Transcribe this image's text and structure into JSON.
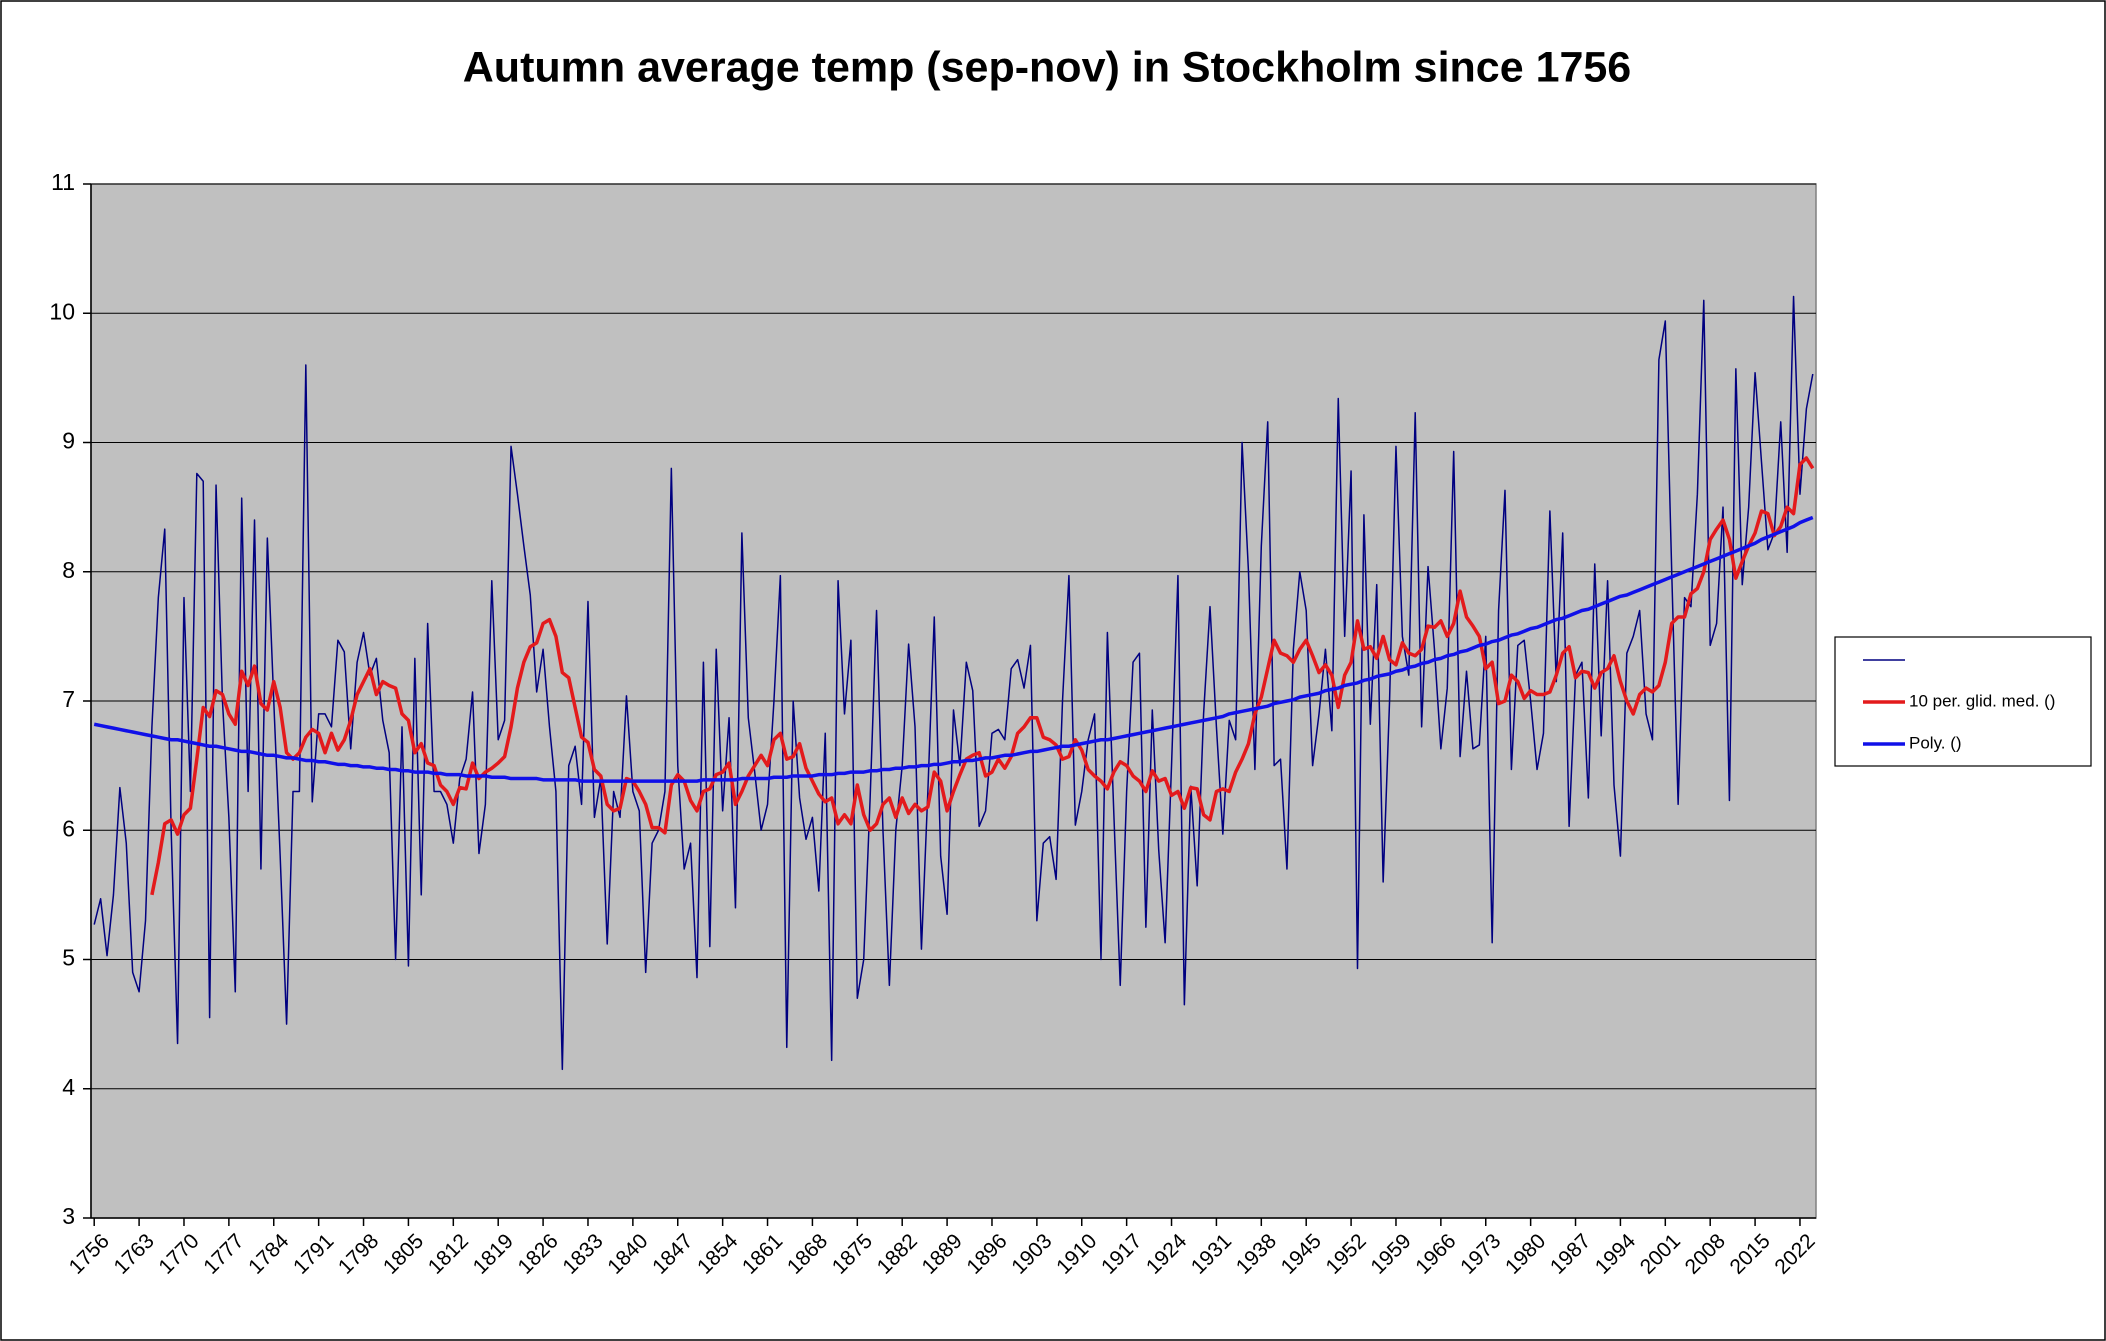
{
  "chart_data": {
    "type": "line",
    "title": "Autumn average temp (sep-nov) in Stockholm since 1756",
    "x": [
      1756,
      1757,
      1758,
      1759,
      1760,
      1761,
      1762,
      1763,
      1764,
      1765,
      1766,
      1767,
      1768,
      1769,
      1770,
      1771,
      1772,
      1773,
      1774,
      1775,
      1776,
      1777,
      1778,
      1779,
      1780,
      1781,
      1782,
      1783,
      1784,
      1785,
      1786,
      1787,
      1788,
      1789,
      1790,
      1791,
      1792,
      1793,
      1794,
      1795,
      1796,
      1797,
      1798,
      1799,
      1800,
      1801,
      1802,
      1803,
      1804,
      1805,
      1806,
      1807,
      1808,
      1809,
      1810,
      1811,
      1812,
      1813,
      1814,
      1815,
      1816,
      1817,
      1818,
      1819,
      1820,
      1821,
      1822,
      1823,
      1824,
      1825,
      1826,
      1827,
      1828,
      1829,
      1830,
      1831,
      1832,
      1833,
      1834,
      1835,
      1836,
      1837,
      1838,
      1839,
      1840,
      1841,
      1842,
      1843,
      1844,
      1845,
      1846,
      1847,
      1848,
      1849,
      1850,
      1851,
      1852,
      1853,
      1854,
      1855,
      1856,
      1857,
      1858,
      1859,
      1860,
      1861,
      1862,
      1863,
      1864,
      1865,
      1866,
      1867,
      1868,
      1869,
      1870,
      1871,
      1872,
      1873,
      1874,
      1875,
      1876,
      1877,
      1878,
      1879,
      1880,
      1881,
      1882,
      1883,
      1884,
      1885,
      1886,
      1887,
      1888,
      1889,
      1890,
      1891,
      1892,
      1893,
      1894,
      1895,
      1896,
      1897,
      1898,
      1899,
      1900,
      1901,
      1902,
      1903,
      1904,
      1905,
      1906,
      1907,
      1908,
      1909,
      1910,
      1911,
      1912,
      1913,
      1914,
      1915,
      1916,
      1917,
      1918,
      1919,
      1920,
      1921,
      1922,
      1923,
      1924,
      1925,
      1926,
      1927,
      1928,
      1929,
      1930,
      1931,
      1932,
      1933,
      1934,
      1935,
      1936,
      1937,
      1938,
      1939,
      1940,
      1941,
      1942,
      1943,
      1944,
      1945,
      1946,
      1947,
      1948,
      1949,
      1950,
      1951,
      1952,
      1953,
      1954,
      1955,
      1956,
      1957,
      1958,
      1959,
      1960,
      1961,
      1962,
      1963,
      1964,
      1965,
      1966,
      1967,
      1968,
      1969,
      1970,
      1971,
      1972,
      1973,
      1974,
      1975,
      1976,
      1977,
      1978,
      1979,
      1980,
      1981,
      1982,
      1983,
      1984,
      1985,
      1986,
      1987,
      1988,
      1989,
      1990,
      1991,
      1992,
      1993,
      1994,
      1995,
      1996,
      1997,
      1998,
      1999,
      2000,
      2001,
      2002,
      2003,
      2004,
      2005,
      2006,
      2007,
      2008,
      2009,
      2010,
      2011,
      2012,
      2013,
      2014,
      2015,
      2016,
      2017,
      2018,
      2019,
      2020,
      2021,
      2022,
      2023,
      2024
    ],
    "series": [
      {
        "color": "#000080",
        "width": 1.5,
        "values": [
          5.27,
          5.47,
          5.03,
          5.5,
          6.33,
          5.9,
          4.9,
          4.75,
          5.3,
          6.8,
          7.8,
          8.33,
          6.0,
          4.35,
          7.8,
          6.3,
          8.76,
          8.7,
          4.55,
          8.67,
          7.0,
          6.1,
          4.75,
          8.57,
          6.3,
          8.4,
          5.7,
          8.26,
          7.0,
          5.8,
          4.5,
          6.3,
          6.3,
          9.6,
          6.22,
          6.9,
          6.9,
          6.8,
          7.47,
          7.38,
          6.63,
          7.3,
          7.53,
          7.2,
          7.33,
          6.85,
          6.6,
          5.0,
          6.8,
          4.95,
          7.33,
          5.5,
          7.6,
          6.3,
          6.3,
          6.2,
          5.9,
          6.4,
          6.55,
          7.07,
          5.82,
          6.2,
          7.93,
          6.7,
          6.85,
          8.97,
          8.6,
          8.2,
          7.82,
          7.07,
          7.4,
          6.8,
          6.3,
          4.15,
          6.5,
          6.65,
          6.2,
          7.77,
          6.1,
          6.4,
          5.12,
          6.3,
          6.1,
          7.04,
          6.3,
          6.15,
          4.9,
          5.9,
          6.0,
          6.3,
          8.8,
          6.5,
          5.7,
          5.9,
          4.86,
          7.3,
          5.1,
          7.4,
          6.15,
          6.87,
          5.4,
          8.3,
          6.87,
          6.45,
          6.0,
          6.2,
          7.0,
          7.97,
          4.32,
          7.0,
          6.25,
          5.93,
          6.1,
          5.53,
          6.75,
          4.22,
          7.93,
          6.9,
          7.47,
          4.7,
          5.0,
          6.25,
          7.7,
          6.0,
          4.8,
          6.0,
          6.5,
          7.44,
          6.8,
          5.08,
          6.3,
          7.65,
          5.8,
          5.35,
          6.93,
          6.5,
          7.3,
          7.08,
          6.03,
          6.15,
          6.75,
          6.78,
          6.7,
          7.25,
          7.32,
          7.1,
          7.43,
          5.3,
          5.9,
          5.95,
          5.62,
          7.0,
          7.97,
          6.04,
          6.3,
          6.7,
          6.9,
          5.0,
          7.53,
          6.13,
          4.8,
          6.3,
          7.3,
          7.37,
          5.25,
          6.93,
          5.85,
          5.13,
          6.5,
          7.97,
          4.65,
          6.34,
          5.57,
          6.9,
          7.73,
          6.8,
          5.97,
          6.85,
          6.7,
          9.0,
          8.0,
          6.47,
          8.2,
          9.16,
          6.5,
          6.55,
          5.7,
          7.4,
          8.0,
          7.7,
          6.5,
          6.9,
          7.4,
          6.77,
          9.34,
          7.5,
          8.78,
          4.93,
          8.44,
          6.82,
          7.9,
          5.6,
          7.0,
          8.97,
          7.5,
          7.2,
          9.23,
          6.8,
          8.04,
          7.4,
          6.63,
          7.1,
          8.93,
          6.57,
          7.23,
          6.63,
          6.66,
          7.5,
          5.13,
          7.7,
          8.63,
          6.47,
          7.43,
          7.47,
          7.0,
          6.47,
          6.75,
          8.47,
          7.15,
          8.3,
          6.03,
          7.2,
          7.3,
          6.25,
          8.06,
          6.73,
          7.93,
          6.35,
          5.8,
          7.37,
          7.5,
          7.7,
          6.9,
          6.7,
          9.64,
          9.94,
          8.0,
          6.2,
          7.8,
          7.73,
          8.6,
          10.1,
          7.43,
          7.6,
          8.5,
          6.23,
          9.57,
          7.9,
          8.5,
          9.54,
          8.85,
          8.17,
          8.3,
          9.16,
          8.15,
          10.13,
          8.6,
          9.26,
          9.53
        ]
      },
      {
        "name": "10 per. glid. med. ()",
        "color": "#e31a1c",
        "width": 3.5,
        "values": [
          null,
          null,
          null,
          null,
          null,
          null,
          null,
          null,
          null,
          5.5,
          5.75,
          6.05,
          6.08,
          5.97,
          6.12,
          6.17,
          6.55,
          6.95,
          6.88,
          7.08,
          7.05,
          6.9,
          6.82,
          7.23,
          7.12,
          7.27,
          6.98,
          6.93,
          7.15,
          6.95,
          6.6,
          6.55,
          6.6,
          6.72,
          6.78,
          6.75,
          6.6,
          6.75,
          6.62,
          6.7,
          6.85,
          7.05,
          7.15,
          7.25,
          7.05,
          7.15,
          7.12,
          7.1,
          6.9,
          6.85,
          6.6,
          6.67,
          6.52,
          6.5,
          6.35,
          6.3,
          6.2,
          6.33,
          6.32,
          6.52,
          6.4,
          6.45,
          6.48,
          6.52,
          6.57,
          6.8,
          7.1,
          7.3,
          7.42,
          7.45,
          7.6,
          7.63,
          7.5,
          7.22,
          7.18,
          6.95,
          6.72,
          6.68,
          6.47,
          6.42,
          6.2,
          6.15,
          6.17,
          6.4,
          6.38,
          6.3,
          6.2,
          6.02,
          6.02,
          5.98,
          6.35,
          6.43,
          6.38,
          6.23,
          6.15,
          6.3,
          6.32,
          6.43,
          6.45,
          6.52,
          6.2,
          6.3,
          6.42,
          6.5,
          6.58,
          6.5,
          6.7,
          6.75,
          6.55,
          6.57,
          6.67,
          6.48,
          6.38,
          6.28,
          6.22,
          6.25,
          6.05,
          6.12,
          6.05,
          6.35,
          6.12,
          6.0,
          6.05,
          6.2,
          6.25,
          6.1,
          6.25,
          6.13,
          6.2,
          6.15,
          6.18,
          6.45,
          6.38,
          6.15,
          6.3,
          6.43,
          6.55,
          6.58,
          6.6,
          6.42,
          6.45,
          6.55,
          6.48,
          6.57,
          6.75,
          6.8,
          6.87,
          6.87,
          6.72,
          6.7,
          6.66,
          6.55,
          6.57,
          6.7,
          6.62,
          6.47,
          6.42,
          6.38,
          6.32,
          6.45,
          6.53,
          6.5,
          6.42,
          6.38,
          6.3,
          6.46,
          6.38,
          6.4,
          6.27,
          6.3,
          6.17,
          6.33,
          6.32,
          6.12,
          6.08,
          6.3,
          6.32,
          6.3,
          6.45,
          6.55,
          6.67,
          6.9,
          7.03,
          7.25,
          7.47,
          7.37,
          7.35,
          7.3,
          7.4,
          7.47,
          7.35,
          7.22,
          7.28,
          7.2,
          6.95,
          7.2,
          7.3,
          7.62,
          7.4,
          7.42,
          7.33,
          7.5,
          7.32,
          7.28,
          7.45,
          7.37,
          7.35,
          7.4,
          7.58,
          7.57,
          7.62,
          7.5,
          7.6,
          7.85,
          7.65,
          7.58,
          7.5,
          7.25,
          7.3,
          6.98,
          7.0,
          7.2,
          7.15,
          7.02,
          7.08,
          7.05,
          7.05,
          7.07,
          7.2,
          7.37,
          7.42,
          7.18,
          7.23,
          7.22,
          7.1,
          7.22,
          7.25,
          7.35,
          7.15,
          7.0,
          6.9,
          7.05,
          7.1,
          7.07,
          7.12,
          7.3,
          7.6,
          7.65,
          7.65,
          7.83,
          7.87,
          8.0,
          8.25,
          8.33,
          8.4,
          8.25,
          7.95,
          8.08,
          8.2,
          8.3,
          8.47,
          8.45,
          8.28,
          8.35,
          8.5,
          8.45,
          8.83,
          8.88,
          8.8
        ]
      },
      {
        "name": "Poly. ()",
        "color": "#1010e8",
        "width": 3.5,
        "values": [
          6.82,
          6.81,
          6.8,
          6.79,
          6.78,
          6.77,
          6.76,
          6.75,
          6.74,
          6.73,
          6.72,
          6.71,
          6.7,
          6.7,
          6.69,
          6.68,
          6.67,
          6.66,
          6.65,
          6.65,
          6.64,
          6.63,
          6.62,
          6.61,
          6.61,
          6.6,
          6.59,
          6.58,
          6.58,
          6.57,
          6.56,
          6.56,
          6.55,
          6.54,
          6.54,
          6.53,
          6.53,
          6.52,
          6.51,
          6.51,
          6.5,
          6.5,
          6.49,
          6.49,
          6.48,
          6.48,
          6.47,
          6.47,
          6.46,
          6.46,
          6.45,
          6.45,
          6.45,
          6.44,
          6.44,
          6.43,
          6.43,
          6.43,
          6.42,
          6.42,
          6.42,
          6.42,
          6.41,
          6.41,
          6.41,
          6.4,
          6.4,
          6.4,
          6.4,
          6.4,
          6.39,
          6.39,
          6.39,
          6.39,
          6.39,
          6.39,
          6.38,
          6.38,
          6.38,
          6.38,
          6.38,
          6.38,
          6.38,
          6.38,
          6.38,
          6.38,
          6.38,
          6.38,
          6.38,
          6.38,
          6.38,
          6.38,
          6.38,
          6.38,
          6.38,
          6.39,
          6.39,
          6.39,
          6.39,
          6.39,
          6.39,
          6.4,
          6.4,
          6.4,
          6.4,
          6.4,
          6.41,
          6.41,
          6.41,
          6.42,
          6.42,
          6.42,
          6.42,
          6.43,
          6.43,
          6.43,
          6.44,
          6.44,
          6.45,
          6.45,
          6.45,
          6.46,
          6.46,
          6.47,
          6.47,
          6.48,
          6.48,
          6.49,
          6.49,
          6.5,
          6.5,
          6.51,
          6.51,
          6.52,
          6.53,
          6.53,
          6.54,
          6.54,
          6.55,
          6.56,
          6.56,
          6.57,
          6.58,
          6.58,
          6.59,
          6.6,
          6.61,
          6.61,
          6.62,
          6.63,
          6.64,
          6.65,
          6.65,
          6.66,
          6.67,
          6.68,
          6.69,
          6.7,
          6.7,
          6.71,
          6.72,
          6.73,
          6.74,
          6.75,
          6.76,
          6.77,
          6.78,
          6.79,
          6.8,
          6.81,
          6.82,
          6.83,
          6.84,
          6.85,
          6.86,
          6.87,
          6.88,
          6.9,
          6.91,
          6.92,
          6.93,
          6.94,
          6.95,
          6.96,
          6.98,
          6.99,
          7.0,
          7.01,
          7.03,
          7.04,
          7.05,
          7.06,
          7.08,
          7.09,
          7.1,
          7.12,
          7.13,
          7.14,
          7.16,
          7.17,
          7.19,
          7.2,
          7.21,
          7.23,
          7.24,
          7.26,
          7.27,
          7.29,
          7.3,
          7.32,
          7.33,
          7.35,
          7.36,
          7.38,
          7.39,
          7.41,
          7.43,
          7.44,
          7.46,
          7.47,
          7.49,
          7.51,
          7.52,
          7.54,
          7.56,
          7.57,
          7.59,
          7.61,
          7.63,
          7.64,
          7.66,
          7.68,
          7.7,
          7.71,
          7.73,
          7.75,
          7.77,
          7.79,
          7.81,
          7.82,
          7.84,
          7.86,
          7.88,
          7.9,
          7.92,
          7.94,
          7.96,
          7.98,
          8.0,
          8.02,
          8.04,
          8.06,
          8.08,
          8.1,
          8.12,
          8.14,
          8.16,
          8.18,
          8.2,
          8.22,
          8.25,
          8.27,
          8.29,
          8.31,
          8.33,
          8.35,
          8.38,
          8.4,
          8.42
        ]
      }
    ],
    "xlim": [
      1755.5,
      2024.5
    ],
    "xticks": [
      1756,
      1763,
      1770,
      1777,
      1784,
      1791,
      1798,
      1805,
      1812,
      1819,
      1826,
      1833,
      1840,
      1847,
      1854,
      1861,
      1868,
      1875,
      1882,
      1889,
      1896,
      1903,
      1910,
      1917,
      1924,
      1931,
      1938,
      1945,
      1952,
      1959,
      1966,
      1973,
      1980,
      1987,
      1994,
      2001,
      2008,
      2015,
      2022
    ],
    "ylim": [
      3,
      11
    ],
    "yticks": [
      3,
      4,
      5,
      6,
      7,
      8,
      9,
      10,
      11
    ],
    "grid": true,
    "legend": "right",
    "plot_background": "#c0c0c0"
  }
}
